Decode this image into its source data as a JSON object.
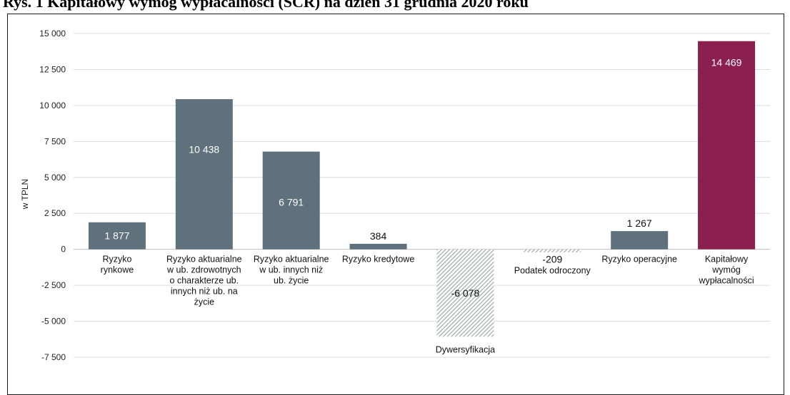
{
  "title": "Rys. 1 Kapitałowy wymóg wypłacalności (SCR) na dzień 31 grudnia 2020 roku",
  "colors": {
    "risk": "#5e717c",
    "negative_hatch": "#9aa0a4",
    "total": "#8b1f4f",
    "grid": "#dcdcdc",
    "axis": "#bdbdbd"
  },
  "chart_data": {
    "type": "bar",
    "title": "Rys. 1 Kapitałowy wymóg wypłacalności (SCR) na dzień 31 grudnia 2020 roku",
    "xlabel": "",
    "ylabel": "w TPLN",
    "ylim": [
      -7500,
      15000
    ],
    "yticks": [
      15000,
      12500,
      10000,
      7500,
      5000,
      2500,
      0,
      -2500,
      -5000,
      -7500
    ],
    "ytick_labels": [
      "15 000",
      "12 500",
      "10 000",
      "7 500",
      "5 000",
      "2 500",
      "0",
      "-2 500",
      "-5 000",
      "-7 500"
    ],
    "grid": true,
    "bars": [
      {
        "category": [
          "Ryzyko",
          "rynkowe"
        ],
        "value": 1877,
        "label": "1 877",
        "style": "risk"
      },
      {
        "category": [
          "Ryzyko aktuarialne",
          "w ub. zdrowotnych",
          "o charakterze ub.",
          "innych niż ub. na",
          "życie"
        ],
        "value": 10438,
        "label": "10 438",
        "style": "risk"
      },
      {
        "category": [
          "Ryzyko aktuarialne",
          "w ub. innych niż",
          "ub. życie"
        ],
        "value": 6791,
        "label": "6 791",
        "style": "risk"
      },
      {
        "category": [
          "Ryzyko kredytowe"
        ],
        "value": 384,
        "label": "384",
        "style": "risk"
      },
      {
        "category": [
          "Dywersyfikacja"
        ],
        "value": -6078,
        "label": "-6 078",
        "style": "negative"
      },
      {
        "category": [
          "Podatek odroczony"
        ],
        "value": -209,
        "label": "-209",
        "style": "negative"
      },
      {
        "category": [
          "Ryzyko operacyjne"
        ],
        "value": 1267,
        "label": "1 267",
        "style": "risk"
      },
      {
        "category": [
          "Kapitałowy",
          "wymóg",
          "wypłacalności"
        ],
        "value": 14469,
        "label": "14 469",
        "style": "total"
      }
    ]
  }
}
